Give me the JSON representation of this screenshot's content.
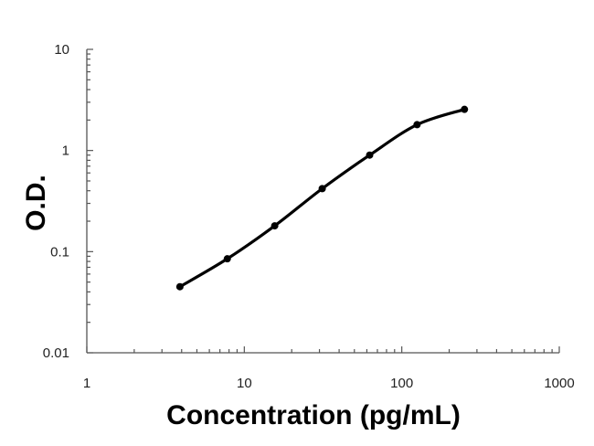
{
  "chart_data": {
    "type": "line",
    "xlabel": "Concentration (pg/mL)",
    "ylabel": "O.D.",
    "x_scale": "log",
    "y_scale": "log",
    "xlim": [
      1,
      1000
    ],
    "ylim": [
      0.01,
      10
    ],
    "x_ticks": [
      "1",
      "10",
      "100",
      "1000"
    ],
    "y_ticks": [
      "0.01",
      "0.1",
      "1",
      "10"
    ],
    "grid": false,
    "legend": "none",
    "series": [
      {
        "x": [
          3.9,
          7.8,
          15.6,
          31.25,
          62.5,
          125,
          250
        ],
        "y": [
          0.045,
          0.085,
          0.18,
          0.42,
          0.9,
          1.8,
          2.55
        ]
      }
    ],
    "colors": {
      "line": "#000000",
      "axis": "#555555"
    }
  }
}
